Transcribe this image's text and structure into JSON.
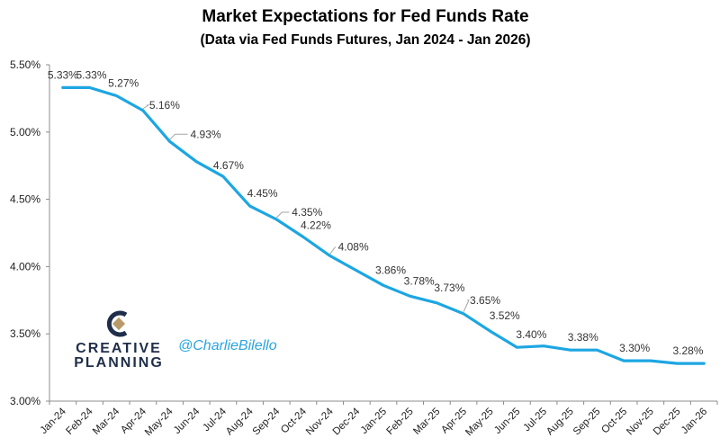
{
  "colors": {
    "line": "#1da6e2",
    "axis": "#8c8c8c",
    "leader": "#a6a6a6",
    "brand_dark": "#1f2e4a",
    "brand_gold": "#b89a6a",
    "handle": "#2aa4e0"
  },
  "branding": {
    "logo_line1": "CREATIVE",
    "logo_line2": "PLANNING",
    "handle": "@CharlieBilello"
  },
  "chart_data": {
    "type": "line",
    "title": "Market Expectations for Fed Funds Rate",
    "subtitle": "(Data via Fed Funds Futures, Jan 2024 - Jan 2026)",
    "xlabel": "",
    "ylabel": "",
    "ylim": [
      3.0,
      5.5
    ],
    "yticks": [
      "3.00%",
      "3.50%",
      "4.00%",
      "4.50%",
      "5.00%",
      "5.50%"
    ],
    "grid": false,
    "categories": [
      "Jan-24",
      "Feb-24",
      "Mar-24",
      "Apr-24",
      "May-24",
      "Jun-24",
      "Jul-24",
      "Aug-24",
      "Sep-24",
      "Oct-24",
      "Nov-24",
      "Dec-24",
      "Jan-25",
      "Feb-25",
      "Mar-25",
      "Apr-25",
      "May-25",
      "Jun-25",
      "Jul-25",
      "Aug-25",
      "Sep-25",
      "Oct-25",
      "Nov-25",
      "Dec-25",
      "Jan-26"
    ],
    "values": [
      5.33,
      5.33,
      5.27,
      5.16,
      4.93,
      4.78,
      4.67,
      4.45,
      4.35,
      4.22,
      4.08,
      3.97,
      3.86,
      3.78,
      3.73,
      3.65,
      3.52,
      3.4,
      3.41,
      3.38,
      3.38,
      3.3,
      3.3,
      3.28,
      3.28
    ],
    "labels": [
      "5.33%",
      "5.33%",
      "5.27%",
      "5.16%",
      "4.93%",
      "",
      "4.67%",
      "4.45%",
      "4.35%",
      "4.22%",
      "4.08%",
      "",
      "3.86%",
      "3.78%",
      "3.73%",
      "3.65%",
      "3.52%",
      "3.40%",
      "",
      "3.38%",
      "",
      "3.30%",
      "",
      "3.28%",
      ""
    ]
  }
}
